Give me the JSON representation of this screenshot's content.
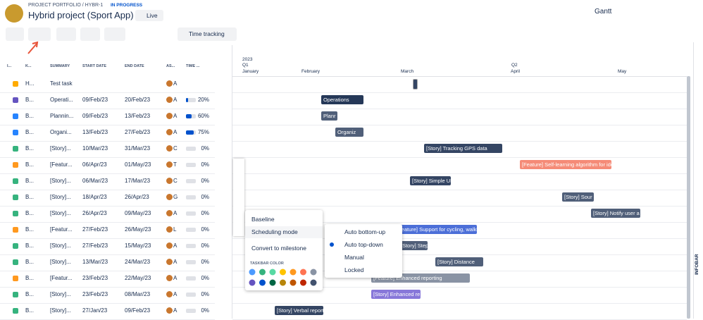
{
  "header": {
    "breadcrumb": "PROJECT PORTFOLIO / HYBR-1",
    "status": "IN PROGRESS",
    "title": "Hybrid project (Sport App)",
    "live": "Live",
    "view": "Gantt"
  },
  "toolbar": {
    "time_tracking": "Time tracking"
  },
  "table": {
    "columns": [
      "I...",
      "K...",
      "SUMMARY",
      "START DATE",
      "END DATE",
      "AS...",
      "TIME ..."
    ],
    "rows": [
      [
        "H...",
        "Test task",
        "",
        "",
        "A",
        ""
      ],
      [
        "B...",
        "Operati...",
        "09/Feb/23",
        "20/Feb/23",
        "A",
        "20%"
      ],
      [
        "B...",
        "Plannin...",
        "09/Feb/23",
        "13/Feb/23",
        "A",
        "60%"
      ],
      [
        "B...",
        "Organi...",
        "13/Feb/23",
        "27/Feb/23",
        "A",
        "75%"
      ],
      [
        "B...",
        "[Story]...",
        "10/Mar/23",
        "31/Mar/23",
        "C",
        "0%"
      ],
      [
        "B...",
        "[Featur...",
        "06/Apr/23",
        "01/May/23",
        "T",
        "0%"
      ],
      [
        "B...",
        "[Story]...",
        "06/Mar/23",
        "17/Mar/23",
        "C",
        "0%"
      ],
      [
        "B...",
        "[Story]...",
        "18/Apr/23",
        "26/Apr/23",
        "G",
        "0%"
      ],
      [
        "B...",
        "[Story]...",
        "26/Apr/23",
        "09/May/23",
        "A",
        "0%"
      ],
      [
        "B...",
        "[Featur...",
        "27/Feb/23",
        "26/May/23",
        "L",
        "0%"
      ],
      [
        "B...",
        "[Story]...",
        "27/Feb/23",
        "15/May/23",
        "A",
        "0%"
      ],
      [
        "B...",
        "[Story]...",
        "13/Mar/23",
        "24/Mar/23",
        "A",
        "0%"
      ],
      [
        "B...",
        "[Featur...",
        "23/Feb/23",
        "22/May/23",
        "A",
        "0%"
      ],
      [
        "B...",
        "[Story]...",
        "23/Feb/23",
        "08/Mar/23",
        "A",
        "0%"
      ],
      [
        "B...",
        "[Story]...",
        "27/Jan/23",
        "09/Feb/23",
        "A",
        "0%"
      ]
    ]
  },
  "gantt": {
    "year": "2023",
    "quarters": [
      "Q1",
      "Q2"
    ],
    "months": [
      "January",
      "February",
      "March",
      "April",
      "May"
    ],
    "bars": [
      "Operations",
      "Planr",
      "Organiz",
      "[Story] Tracking GPS data",
      "[Feature] Self-learning algorithm for ide",
      "[Story] Simple UI",
      "[Story] Sour",
      "[Story] Notify user a",
      "[Feature] Support for cycling, walking a",
      "[Story] Step cour",
      "[Story] Distance",
      "[Feature] Enhanced reporting",
      "[Story] Enhanced re",
      "[Story] Verbal report"
    ]
  },
  "menu": {
    "items": [
      "Baseline",
      "Scheduling mode",
      "Convert to milestone"
    ],
    "color_title": "TASKBAR COLOR"
  },
  "submenu": {
    "items": [
      "Auto bottom-up",
      "Auto top-down",
      "Manual",
      "Locked"
    ]
  },
  "infobar": "INFOBAR"
}
